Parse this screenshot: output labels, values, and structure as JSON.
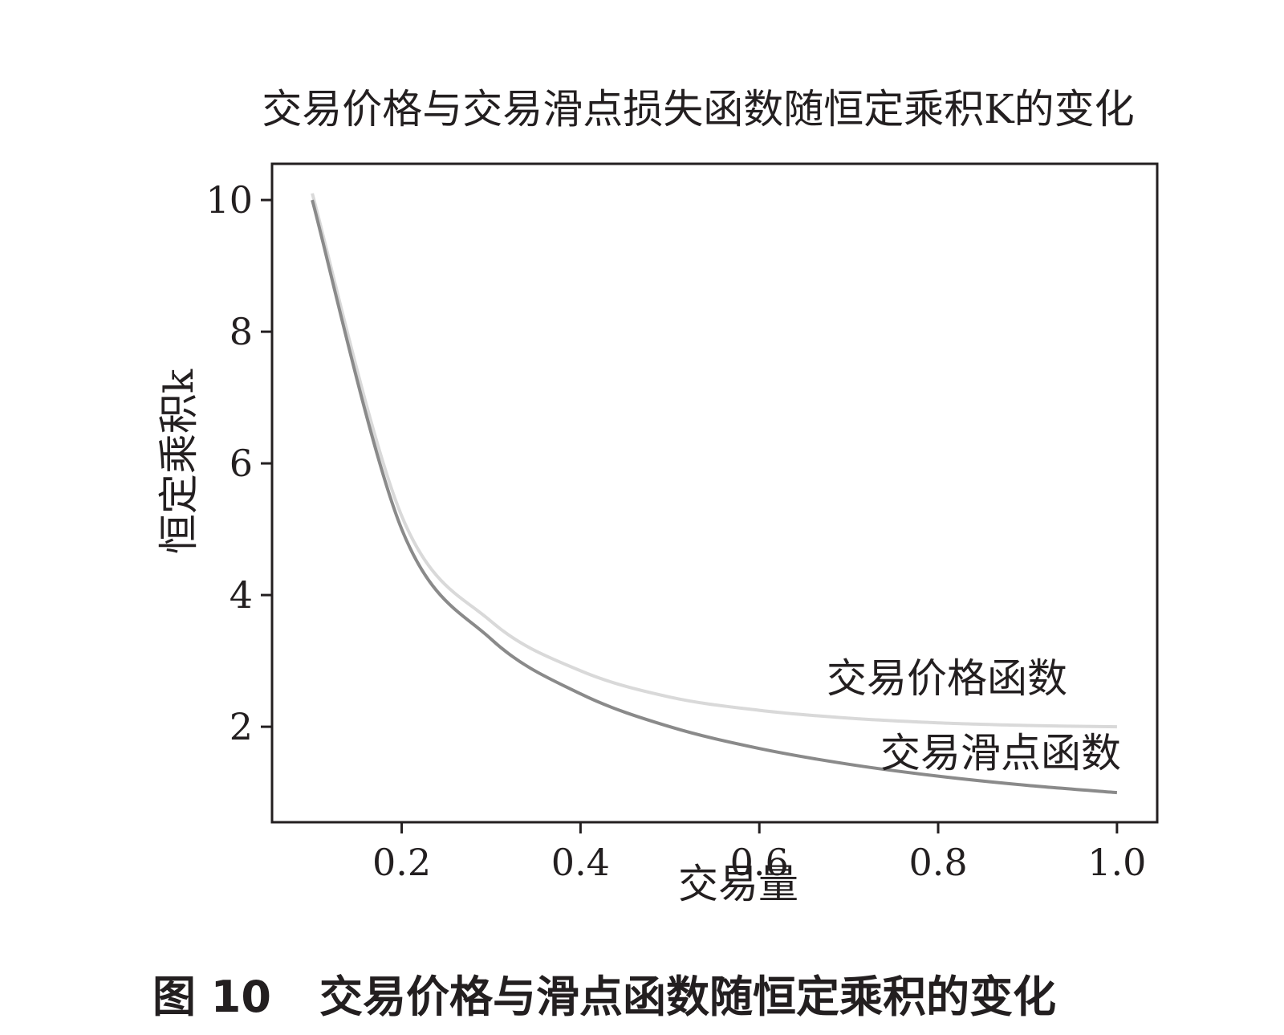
{
  "chart_data": {
    "type": "line",
    "title": "交易价格与交易滑点损失函数随恒定乘积K的变化",
    "xlabel": "交易量",
    "ylabel": "恒定乘积k",
    "x_ticks": [
      "0.2",
      "0.4",
      "0.6",
      "0.8",
      "1.0"
    ],
    "y_ticks": [
      "2",
      "4",
      "6",
      "8",
      "10"
    ],
    "xlim": [
      0.055,
      1.045
    ],
    "ylim": [
      0.55,
      10.55
    ],
    "grid": false,
    "series": [
      {
        "name": "交易价格函数",
        "color": "#d9d9d9",
        "x": [
          0.1,
          0.2,
          0.3,
          0.4,
          0.5,
          0.6,
          0.7,
          0.8,
          0.9,
          1.0
        ],
        "y": [
          10.1,
          5.2,
          3.6,
          2.85,
          2.45,
          2.25,
          2.13,
          2.06,
          2.02,
          2.0
        ]
      },
      {
        "name": "交易滑点函数",
        "color": "#8a8a8a",
        "x": [
          0.1,
          0.2,
          0.3,
          0.4,
          0.5,
          0.6,
          0.7,
          0.8,
          0.9,
          1.0
        ],
        "y": [
          10.0,
          5.0,
          3.33,
          2.5,
          2.0,
          1.67,
          1.43,
          1.25,
          1.11,
          1.0
        ]
      }
    ]
  },
  "caption": {
    "figure_number": "图 10",
    "text": "交易价格与滑点函数随恒定乘积的变化"
  }
}
